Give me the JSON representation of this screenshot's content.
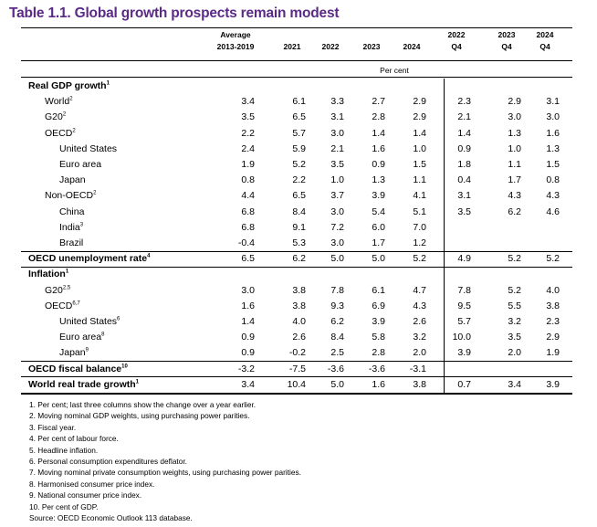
{
  "title": "Table 1.1. Global growth prospects remain modest",
  "header": {
    "columns": [
      {
        "line1": "Average",
        "line2": "2013-2019"
      },
      {
        "line1": "",
        "line2": "2021"
      },
      {
        "line1": "",
        "line2": "2022"
      },
      {
        "line1": "",
        "line2": "2023"
      },
      {
        "line1": "",
        "line2": "2024"
      },
      {
        "line1": "2022",
        "line2": "Q4"
      },
      {
        "line1": "2023",
        "line2": "Q4"
      },
      {
        "line1": "2024",
        "line2": "Q4"
      }
    ],
    "unit": "Per cent"
  },
  "rows": [
    {
      "label": "Real GDP growth",
      "sup": "1",
      "bold": true,
      "indent": 0,
      "values": [
        "",
        "",
        "",
        "",
        "",
        "",
        "",
        ""
      ]
    },
    {
      "label": "World",
      "sup": "2",
      "bold": false,
      "indent": 1,
      "values": [
        "3.4",
        "6.1",
        "3.3",
        "2.7",
        "2.9",
        "2.3",
        "2.9",
        "3.1"
      ]
    },
    {
      "label": "G20",
      "sup": "2",
      "bold": false,
      "indent": 1,
      "values": [
        "3.5",
        "6.5",
        "3.1",
        "2.8",
        "2.9",
        "2.1",
        "3.0",
        "3.0"
      ]
    },
    {
      "label": "OECD",
      "sup": "2",
      "bold": false,
      "indent": 1,
      "values": [
        "2.2",
        "5.7",
        "3.0",
        "1.4",
        "1.4",
        "1.4",
        "1.3",
        "1.6"
      ]
    },
    {
      "label": "United States",
      "sup": "",
      "bold": false,
      "indent": 2,
      "values": [
        "2.4",
        "5.9",
        "2.1",
        "1.6",
        "1.0",
        "0.9",
        "1.0",
        "1.3"
      ]
    },
    {
      "label": "Euro area",
      "sup": "",
      "bold": false,
      "indent": 2,
      "values": [
        "1.9",
        "5.2",
        "3.5",
        "0.9",
        "1.5",
        "1.8",
        "1.1",
        "1.5"
      ]
    },
    {
      "label": "Japan",
      "sup": "",
      "bold": false,
      "indent": 2,
      "values": [
        "0.8",
        "2.2",
        "1.0",
        "1.3",
        "1.1",
        "0.4",
        "1.7",
        "0.8"
      ]
    },
    {
      "label": "Non-OECD",
      "sup": "2",
      "bold": false,
      "indent": 1,
      "values": [
        "4.4",
        "6.5",
        "3.7",
        "3.9",
        "4.1",
        "3.1",
        "4.3",
        "4.3"
      ]
    },
    {
      "label": "China",
      "sup": "",
      "bold": false,
      "indent": 2,
      "values": [
        "6.8",
        "8.4",
        "3.0",
        "5.4",
        "5.1",
        "3.5",
        "6.2",
        "4.6"
      ]
    },
    {
      "label": "India",
      "sup": "3",
      "bold": false,
      "indent": 2,
      "values": [
        "6.8",
        "9.1",
        "7.2",
        "6.0",
        "7.0",
        "",
        "",
        ""
      ]
    },
    {
      "label": "Brazil",
      "sup": "",
      "bold": false,
      "indent": 2,
      "values": [
        "-0.4",
        "5.3",
        "3.0",
        "1.7",
        "1.2",
        "",
        "",
        ""
      ]
    },
    {
      "label": "OECD unemployment rate",
      "sup": "4",
      "bold": true,
      "indent": 0,
      "values": [
        "6.5",
        "6.2",
        "5.0",
        "5.0",
        "5.2",
        "4.9",
        "5.2",
        "5.2"
      ]
    },
    {
      "label": "Inflation",
      "sup": "1",
      "bold": true,
      "indent": 0,
      "values": [
        "",
        "",
        "",
        "",
        "",
        "",
        "",
        ""
      ]
    },
    {
      "label": "G20",
      "sup": "2,5",
      "bold": false,
      "indent": 1,
      "values": [
        "3.0",
        "3.8",
        "7.8",
        "6.1",
        "4.7",
        "7.8",
        "5.2",
        "4.0"
      ]
    },
    {
      "label": "OECD",
      "sup": "6,7",
      "bold": false,
      "indent": 1,
      "values": [
        "1.6",
        "3.8",
        "9.3",
        "6.9",
        "4.3",
        "9.5",
        "5.5",
        "3.8"
      ]
    },
    {
      "label": "United States",
      "sup": "6",
      "bold": false,
      "indent": 2,
      "values": [
        "1.4",
        "4.0",
        "6.2",
        "3.9",
        "2.6",
        "5.7",
        "3.2",
        "2.3"
      ]
    },
    {
      "label": "Euro area",
      "sup": "8",
      "bold": false,
      "indent": 2,
      "values": [
        "0.9",
        "2.6",
        "8.4",
        "5.8",
        "3.2",
        "10.0",
        "3.5",
        "2.9"
      ]
    },
    {
      "label": "Japan",
      "sup": "9",
      "bold": false,
      "indent": 2,
      "values": [
        "0.9",
        "-0.2",
        "2.5",
        "2.8",
        "2.0",
        "3.9",
        "2.0",
        "1.9"
      ]
    },
    {
      "label": "OECD fiscal balance",
      "sup": "10",
      "bold": true,
      "indent": 0,
      "values": [
        "-3.2",
        "-7.5",
        "-3.6",
        "-3.6",
        "-3.1",
        "",
        "",
        ""
      ]
    },
    {
      "label": "World real trade growth",
      "sup": "1",
      "bold": true,
      "indent": 0,
      "values": [
        "3.4",
        "10.4",
        "5.0",
        "1.6",
        "3.8",
        "0.7",
        "3.4",
        "3.9"
      ]
    }
  ],
  "notes": [
    "1.  Per cent; last three columns show the change over a year earlier.",
    "2.  Moving nominal GDP weights, using purchasing power parities.",
    "3.  Fiscal year.",
    "4.  Per cent of labour force.",
    "5.  Headline inflation.",
    "6.  Personal consumption expenditures deflator.",
    "7.  Moving nominal private consumption weights, using purchasing power parities.",
    "8.  Harmonised consumer price index.",
    "9.  National consumer price index.",
    "10.  Per cent of GDP.",
    "Source: OECD Economic Outlook 113 database."
  ]
}
